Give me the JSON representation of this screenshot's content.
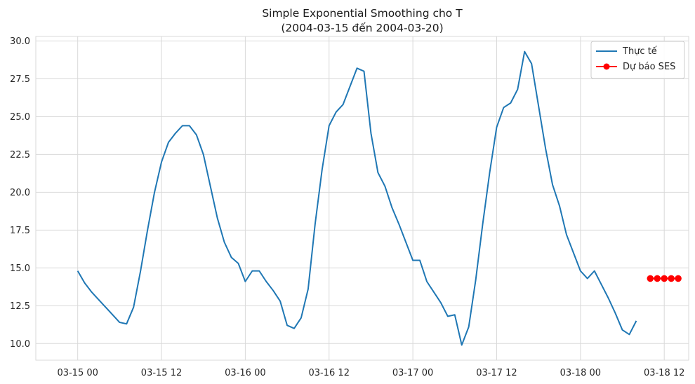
{
  "chart_data": {
    "type": "line",
    "title_line1": "Simple Exponential Smoothing cho T",
    "title_line2": "(2004-03-15 đến 2004-03-20)",
    "xlabel": "",
    "ylabel": "",
    "x_unit": "hours since 03-15 00",
    "xlim": [
      -6,
      87.5
    ],
    "ylim": [
      8.9,
      30.3
    ],
    "y_ticks": [
      10.0,
      12.5,
      15.0,
      17.5,
      20.0,
      22.5,
      25.0,
      27.5,
      30.0
    ],
    "y_tick_labels": [
      "10.0",
      "12.5",
      "15.0",
      "17.5",
      "20.0",
      "22.5",
      "25.0",
      "27.5",
      "30.0"
    ],
    "x_ticks": [
      0,
      12,
      24,
      36,
      48,
      60,
      72,
      84
    ],
    "x_tick_labels": [
      "03-15 00",
      "03-15 12",
      "03-16 00",
      "03-16 12",
      "03-17 00",
      "03-17 12",
      "03-18 00",
      "03-18 12"
    ],
    "grid": true,
    "legend_position": "top-right",
    "series": [
      {
        "name": "Thực tế",
        "color": "#1f77b4",
        "marker": "none",
        "x": [
          0,
          1,
          2,
          3,
          4,
          5,
          6,
          7,
          8,
          9,
          10,
          11,
          12,
          13,
          14,
          15,
          16,
          17,
          18,
          19,
          20,
          21,
          22,
          23,
          24,
          25,
          26,
          27,
          28,
          29,
          30,
          31,
          32,
          33,
          34,
          35,
          36,
          37,
          38,
          39,
          40,
          41,
          42,
          43,
          44,
          45,
          46,
          47,
          48,
          49,
          50,
          51,
          52,
          53,
          54,
          55,
          56,
          57,
          58,
          59,
          60,
          61,
          62,
          63,
          64,
          65,
          66,
          67,
          68,
          69,
          70,
          71,
          72,
          73,
          74,
          75,
          76,
          77,
          78,
          79,
          80
        ],
        "y": [
          14.8,
          14.0,
          13.4,
          12.9,
          12.4,
          11.9,
          11.4,
          11.3,
          12.4,
          14.8,
          17.5,
          20.0,
          22.0,
          23.3,
          23.9,
          24.4,
          24.4,
          23.8,
          22.5,
          20.4,
          18.3,
          16.7,
          15.7,
          15.3,
          14.1,
          14.8,
          14.8,
          14.1,
          13.5,
          12.8,
          11.2,
          11.0,
          11.7,
          13.6,
          17.9,
          21.5,
          24.4,
          25.3,
          25.8,
          27.0,
          28.2,
          28.0,
          23.9,
          21.3,
          20.4,
          19.0,
          17.9,
          16.7,
          15.5,
          15.5,
          14.1,
          13.4,
          12.7,
          11.8,
          11.9,
          9.9,
          11.1,
          14.2,
          17.9,
          21.3,
          24.3,
          25.6,
          25.9,
          26.8,
          29.3,
          28.5,
          25.7,
          22.9,
          20.5,
          19.1,
          17.2,
          16.0,
          14.8,
          14.3,
          14.8,
          13.9,
          13.0,
          12.0,
          10.9,
          10.6,
          11.5
        ]
      },
      {
        "name": "Dự báo SES",
        "color": "#ff0000",
        "marker": "circle",
        "x": [
          82,
          83,
          84,
          85,
          86
        ],
        "y": [
          14.3,
          14.3,
          14.3,
          14.3,
          14.3
        ]
      }
    ]
  }
}
